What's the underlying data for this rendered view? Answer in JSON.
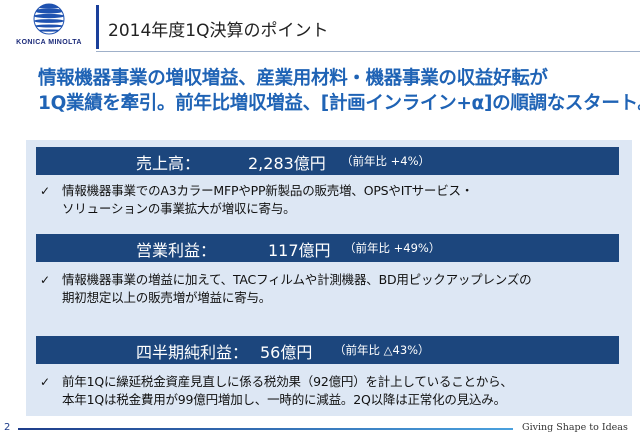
{
  "header": {
    "logo_text": "KONICA MINOLTA",
    "title": "2014年度1Q決算のポイント"
  },
  "headline": {
    "line1": "情報機器事業の増収増益、産業用材料・機器事業の収益好転が",
    "line2": "1Q業績を牽引。前年比増収増益、[計画インライン+α]の順調なスタート。"
  },
  "sections": [
    {
      "label": "売上高：",
      "value": "2,283億円",
      "yoy": "（前年比 +4%）",
      "bullet_lines": [
        "情報機器事業でのA3カラーMFPやPP新製品の販売増、OPSやITサービス・",
        "ソリューションの事業拡大が増収に寄与。"
      ]
    },
    {
      "label": "営業利益：",
      "value": "117億円",
      "yoy": "（前年比 +49%）",
      "bullet_lines": [
        "情報機器事業の増益に加えて、TACフィルムや計測機器、BD用ピックアップレンズの",
        "期初想定以上の販売増が増益に寄与。"
      ]
    },
    {
      "label": "四半期純利益：",
      "value": "56億円",
      "yoy": "（前年比 △43%）",
      "bullet_lines": [
        "前年1Qに繰延税金資産見直しに係る税効果（92億円）を計上していることから、",
        "本年1Qは税金費用が99億円増加し、一時的に減益。2Q以降は正常化の見込み。"
      ]
    }
  ],
  "footer": {
    "page_number": "2",
    "tagline": "Giving Shape to Ideas"
  },
  "colors": {
    "bar": "#1c467d",
    "headline": "#1f63b5",
    "panel": "#dde7f4"
  }
}
